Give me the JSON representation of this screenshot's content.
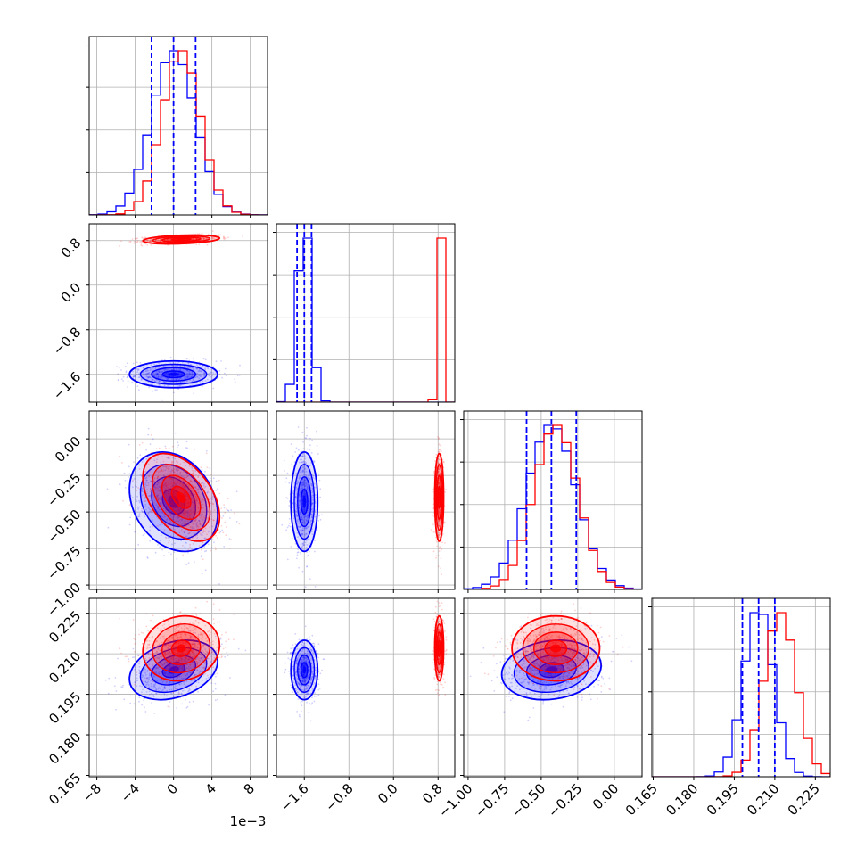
{
  "figure": {
    "offset_label": "1e−3",
    "colors": {
      "series_a": "#0000ff",
      "series_b": "#ff0000",
      "grid": "#b0b0b0",
      "axes": "#000000"
    }
  },
  "chart_data": {
    "type": "corner",
    "parameters": [
      {
        "index": 0,
        "range": [
          -8.8,
          9.8
        ],
        "ticks": [
          -8,
          -4,
          0,
          4,
          8
        ],
        "tick_labels": [
          "−8",
          "−4",
          "0",
          "4",
          "8"
        ],
        "scale_offset": "1e−3"
      },
      {
        "index": 1,
        "range": [
          -2.1,
          1.1
        ],
        "ticks": [
          -1.6,
          -0.8,
          0.0,
          0.8
        ],
        "tick_labels": [
          "−1.6",
          "−0.8",
          "0.0",
          "0.8"
        ]
      },
      {
        "index": 2,
        "range": [
          -1.03,
          0.19
        ],
        "ticks": [
          -1.0,
          -0.75,
          -0.5,
          -0.25,
          0.0
        ],
        "tick_labels": [
          "−1.00",
          "−0.75",
          "−0.50",
          "−0.25",
          "0.00"
        ]
      },
      {
        "index": 3,
        "range": [
          0.1645,
          0.2305
        ],
        "ticks": [
          0.165,
          0.18,
          0.195,
          0.21,
          0.225
        ],
        "tick_labels": [
          "0.165",
          "0.180",
          "0.195",
          "0.210",
          "0.225"
        ]
      }
    ],
    "series": [
      {
        "color": "#0000ff",
        "means": [
          0.0,
          -1.6,
          -0.43,
          0.204
        ],
        "sds": [
          2.3,
          0.12,
          0.17,
          0.0055
        ],
        "quantiles": [
          [
            -2.3,
            0.0,
            2.3
          ],
          [
            -1.73,
            -1.6,
            -1.47
          ],
          [
            -0.6,
            -0.43,
            -0.26
          ],
          [
            0.198,
            0.204,
            0.21
          ]
        ],
        "correlations": [
          [
            0,
            1,
            0.0
          ],
          [
            0,
            2,
            -0.25
          ],
          [
            0,
            3,
            0.3
          ],
          [
            1,
            2,
            0.0
          ],
          [
            1,
            3,
            0.0
          ],
          [
            2,
            3,
            0.15
          ]
        ]
      },
      {
        "color": "#ff0000",
        "means": [
          0.8,
          0.82,
          -0.4,
          0.212
        ],
        "sds": [
          2.0,
          0.04,
          0.15,
          0.006
        ],
        "correlations": [
          [
            0,
            1,
            0.3
          ],
          [
            0,
            2,
            -0.45
          ],
          [
            0,
            3,
            0.1
          ],
          [
            1,
            2,
            0.0
          ],
          [
            1,
            3,
            0.0
          ],
          [
            2,
            3,
            0.0
          ]
        ]
      }
    ],
    "quantile_lines": {
      "series": 0,
      "style": "dashed"
    },
    "grid": true,
    "legend": "none"
  }
}
